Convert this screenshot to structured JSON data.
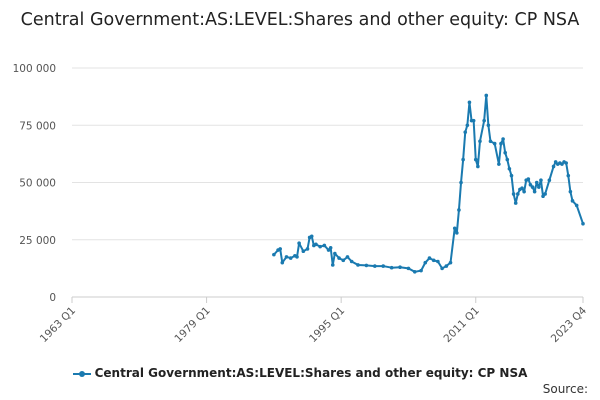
{
  "chart_data": {
    "type": "line",
    "title": "Central Government:AS:LEVEL:Shares and other equity: CP NSA",
    "xlabel": "",
    "ylabel": "",
    "x_tick_labels": [
      "1963 Q1",
      "1979 Q1",
      "1995 Q1",
      "2011 Q1",
      "2023 Q4"
    ],
    "y_tick_labels": [
      "0",
      "25 000",
      "50 000",
      "75 000",
      "100 000"
    ],
    "ylim": [
      0,
      100000
    ],
    "xlim": [
      "1963 Q1",
      "2023 Q4"
    ],
    "grid": "horizontal",
    "legend_position": "bottom",
    "color": "#1a7ab0",
    "series": [
      {
        "name": "Central Government:AS:LEVEL:Shares and other equity: CP NSA",
        "points": [
          [
            "1987 Q1",
            18500
          ],
          [
            "1987 Q3",
            20500
          ],
          [
            "1987 Q4",
            21000
          ],
          [
            "1988 Q1",
            15000
          ],
          [
            "1988 Q3",
            17500
          ],
          [
            "1989 Q1",
            17000
          ],
          [
            "1989 Q3",
            18000
          ],
          [
            "1989 Q4",
            17500
          ],
          [
            "1990 Q1",
            23500
          ],
          [
            "1990 Q3",
            20000
          ],
          [
            "1991 Q1",
            21000
          ],
          [
            "1991 Q2",
            26000
          ],
          [
            "1991 Q3",
            26500
          ],
          [
            "1991 Q4",
            22500
          ],
          [
            "1992 Q1",
            23000
          ],
          [
            "1992 Q3",
            22000
          ],
          [
            "1993 Q1",
            22500
          ],
          [
            "1993 Q3",
            20500
          ],
          [
            "1993 Q4",
            21500
          ],
          [
            "1994 Q1",
            14000
          ],
          [
            "1994 Q2",
            19000
          ],
          [
            "1994 Q4",
            17000
          ],
          [
            "1995 Q2",
            16000
          ],
          [
            "1995 Q4",
            17500
          ],
          [
            "1996 Q2",
            15500
          ],
          [
            "1997 Q1",
            14000
          ],
          [
            "1998 Q1",
            13800
          ],
          [
            "1999 Q1",
            13500
          ],
          [
            "2000 Q1",
            13500
          ],
          [
            "2001 Q1",
            12800
          ],
          [
            "2002 Q1",
            13000
          ],
          [
            "2003 Q1",
            12500
          ],
          [
            "2003 Q4",
            11000
          ],
          [
            "2004 Q3",
            11500
          ],
          [
            "2005 Q1",
            15000
          ],
          [
            "2005 Q3",
            17000
          ],
          [
            "2006 Q1",
            16000
          ],
          [
            "2006 Q3",
            15500
          ],
          [
            "2007 Q1",
            12500
          ],
          [
            "2007 Q3",
            13500
          ],
          [
            "2008 Q1",
            15000
          ],
          [
            "2008 Q3",
            30000
          ],
          [
            "2008 Q4",
            28000
          ],
          [
            "2009 Q1",
            38000
          ],
          [
            "2009 Q2",
            50000
          ],
          [
            "2009 Q3",
            60000
          ],
          [
            "2009 Q4",
            72000
          ],
          [
            "2010 Q1",
            75000
          ],
          [
            "2010 Q2",
            85000
          ],
          [
            "2010 Q3",
            77000
          ],
          [
            "2010 Q4",
            77000
          ],
          [
            "2011 Q1",
            60000
          ],
          [
            "2011 Q2",
            57000
          ],
          [
            "2011 Q3",
            68000
          ],
          [
            "2012 Q1",
            77000
          ],
          [
            "2012 Q2",
            88000
          ],
          [
            "2012 Q3",
            75000
          ],
          [
            "2012 Q4",
            68000
          ],
          [
            "2013 Q2",
            67000
          ],
          [
            "2013 Q4",
            58000
          ],
          [
            "2014 Q1",
            67000
          ],
          [
            "2014 Q2",
            69000
          ],
          [
            "2014 Q3",
            63000
          ],
          [
            "2014 Q4",
            60000
          ],
          [
            "2015 Q1",
            56000
          ],
          [
            "2015 Q2",
            53000
          ],
          [
            "2015 Q3",
            45000
          ],
          [
            "2015 Q4",
            41000
          ],
          [
            "2016 Q1",
            45000
          ],
          [
            "2016 Q2",
            47000
          ],
          [
            "2016 Q3",
            47500
          ],
          [
            "2016 Q4",
            46000
          ],
          [
            "2017 Q1",
            51000
          ],
          [
            "2017 Q2",
            51500
          ],
          [
            "2017 Q3",
            49000
          ],
          [
            "2017 Q4",
            48000
          ],
          [
            "2018 Q1",
            46000
          ],
          [
            "2018 Q2",
            50000
          ],
          [
            "2018 Q3",
            48000
          ],
          [
            "2018 Q4",
            51000
          ],
          [
            "2019 Q1",
            44000
          ],
          [
            "2019 Q2",
            45000
          ],
          [
            "2019 Q4",
            51000
          ],
          [
            "2020 Q2",
            57000
          ],
          [
            "2020 Q3",
            59000
          ],
          [
            "2020 Q4",
            58000
          ],
          [
            "2021 Q1",
            58500
          ],
          [
            "2021 Q2",
            58000
          ],
          [
            "2021 Q3",
            59000
          ],
          [
            "2021 Q4",
            58500
          ],
          [
            "2022 Q1",
            53000
          ],
          [
            "2022 Q2",
            46000
          ],
          [
            "2022 Q3",
            42000
          ],
          [
            "2023 Q1",
            40000
          ],
          [
            "2023 Q4",
            32000
          ]
        ]
      }
    ]
  },
  "source_label": "Source:"
}
